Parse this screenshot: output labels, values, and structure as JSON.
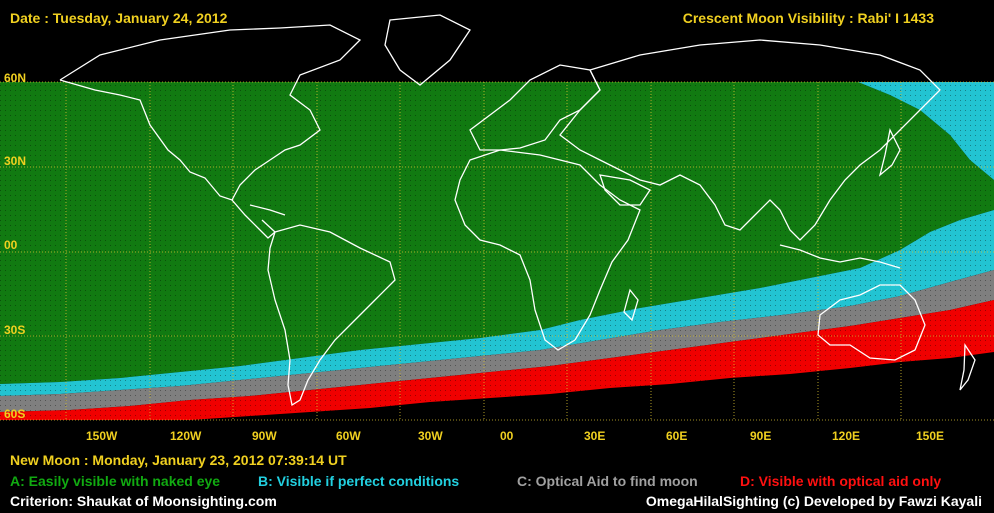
{
  "header": {
    "date": "Date : Tuesday, January 24, 2012",
    "title": "Crescent Moon Visibility : Rabi' I  1433"
  },
  "map": {
    "lat_labels": [
      "60N",
      "30N",
      "00",
      "30S",
      "60S"
    ],
    "lon_labels": [
      "150W",
      "120W",
      "90W",
      "60W",
      "30W",
      "00",
      "30E",
      "60E",
      "90E",
      "120E",
      "150E"
    ],
    "zones": {
      "A": {
        "color": "#117a11"
      },
      "B": {
        "color": "#22c4d2"
      },
      "C": {
        "color": "#7f7f7f"
      },
      "D": {
        "color": "#f00000"
      }
    }
  },
  "footer": {
    "new_moon": "New Moon : Monday, January 23, 2012  07:39:14  UT",
    "legend": [
      {
        "label": "A: Easily visible with naked eye",
        "color": "#11aa11"
      },
      {
        "label": "B: Visible if perfect conditions",
        "color": "#22d0e0"
      },
      {
        "label": "C: Optical Aid to find moon",
        "color": "#a0a0a0"
      },
      {
        "label": "D: Visible with optical aid only",
        "color": "#ff1010"
      }
    ],
    "criterion": "Criterion: Shaukat of Moonsighting.com",
    "credit": "OmegaHilalSighting  (c)  Developed by Fawzi Kayali"
  }
}
